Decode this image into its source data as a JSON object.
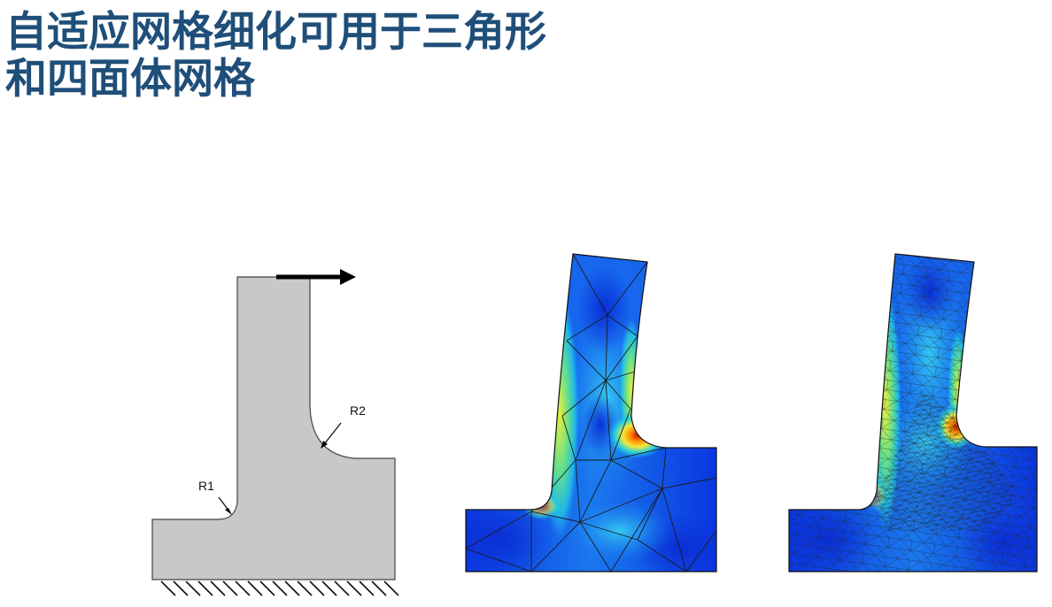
{
  "slide": {
    "title_line1": "自适应网格细化可用于三角形",
    "title_line2": "和四面体网格"
  },
  "diagram": {
    "label_r1": "R1",
    "label_r2": "R2"
  },
  "colors": {
    "title": "#1f4e79",
    "part_fill": "#c8c8c8",
    "stress_low": "#0a3ee0",
    "stress_high": "#d41a00"
  }
}
